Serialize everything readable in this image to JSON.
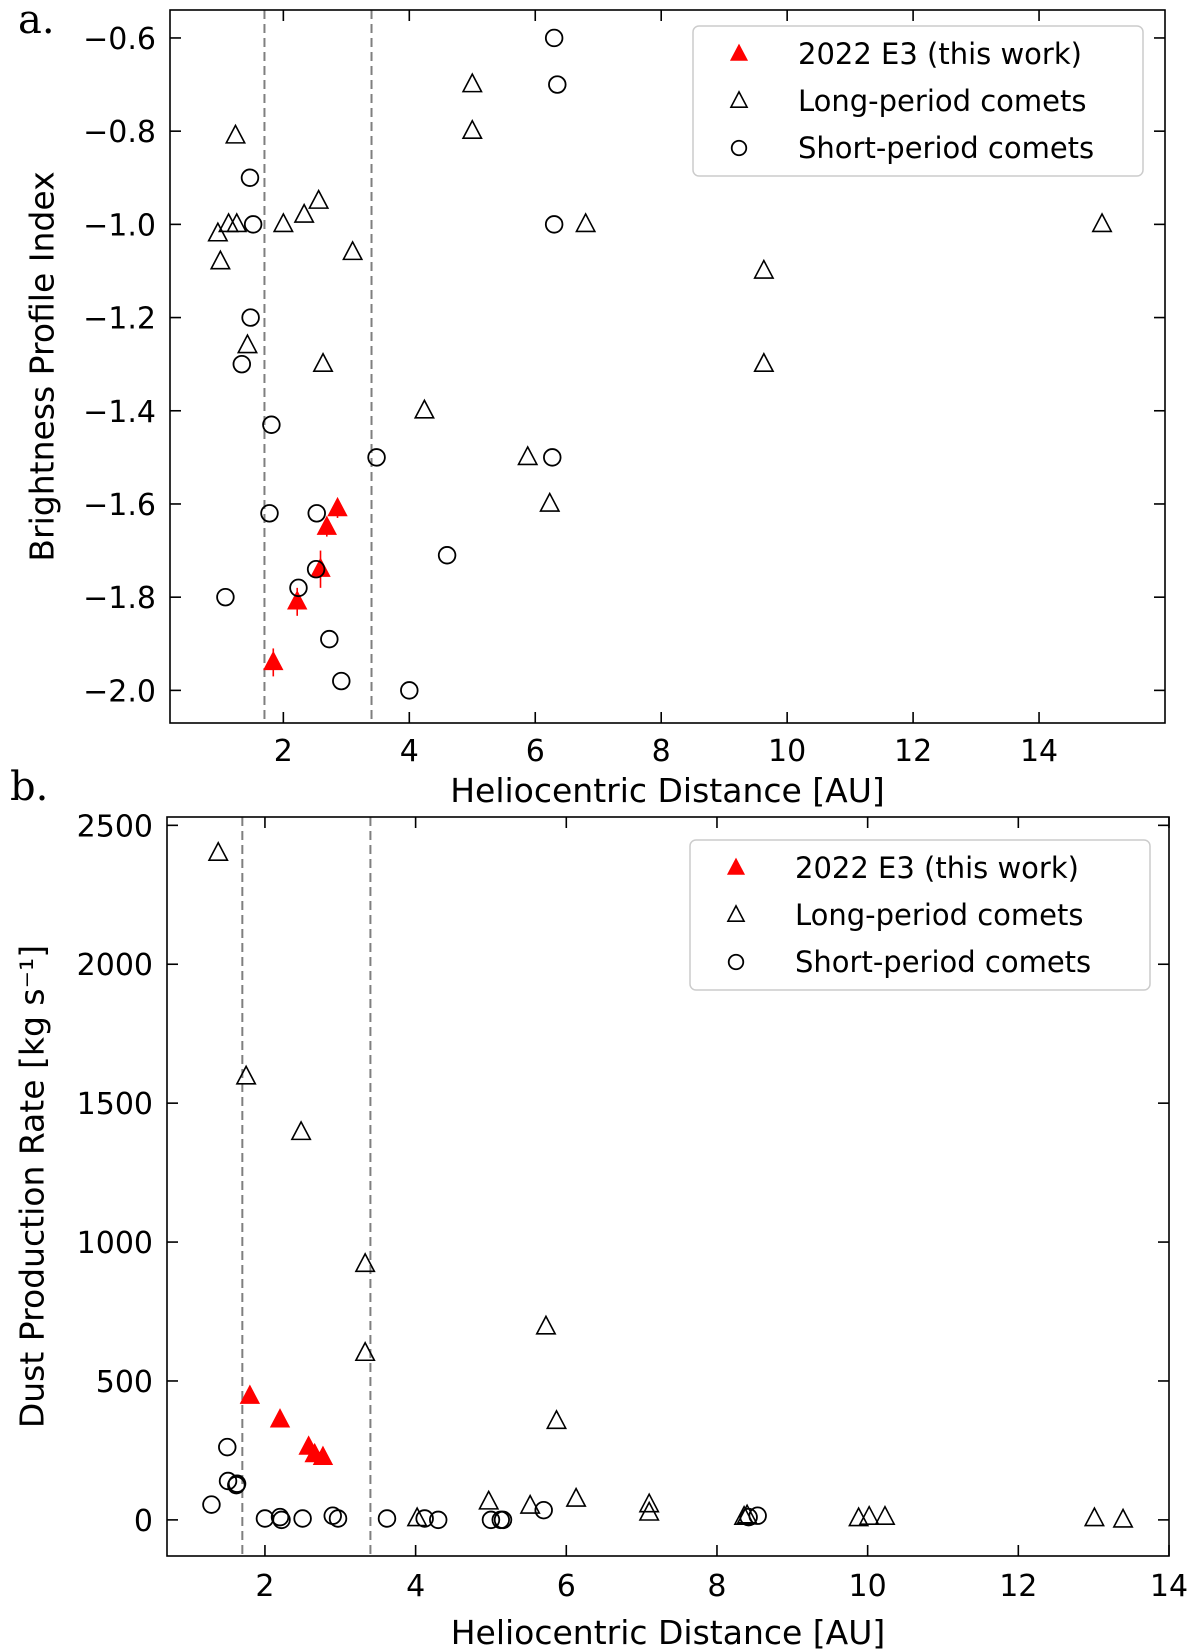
{
  "chart_data": [
    {
      "panel_label": "a.",
      "type": "scatter",
      "xlabel": "Heliocentric Distance [AU]",
      "ylabel": "Brightness Profile Index",
      "xlim": [
        0.2,
        16.0
      ],
      "ylim": [
        -2.07,
        -0.54
      ],
      "xticks": [
        2,
        4,
        6,
        8,
        10,
        12,
        14
      ],
      "yticks": [
        -2.0,
        -1.8,
        -1.6,
        -1.4,
        -1.2,
        -1.0,
        -0.8,
        -0.6
      ],
      "ytick_labels": [
        "−2.0",
        "−1.8",
        "−1.6",
        "−1.4",
        "−1.2",
        "−1.0",
        "−0.8",
        "−0.6"
      ],
      "vlines": [
        1.7,
        3.4
      ],
      "grid": false,
      "legend_position": "top-right",
      "series": [
        {
          "name": "2022 E3 (this work)",
          "marker": "filled-triangle",
          "color": "#ff0000",
          "points": [
            [
              1.84,
              -1.94
            ],
            [
              2.22,
              -1.81
            ],
            [
              2.59,
              -1.74
            ],
            [
              2.69,
              -1.65
            ],
            [
              2.86,
              -1.61
            ]
          ],
          "yerr": [
            0.03,
            0.03,
            0.04,
            0.02,
            0.02
          ]
        },
        {
          "name": "Long-period comets",
          "marker": "open-triangle",
          "color": "#000000",
          "points": [
            [
              0.96,
              -1.02
            ],
            [
              1.0,
              -1.08
            ],
            [
              1.13,
              -1.0
            ],
            [
              1.26,
              -1.0
            ],
            [
              1.24,
              -0.81
            ],
            [
              1.43,
              -1.26
            ],
            [
              2.0,
              -1.0
            ],
            [
              2.33,
              -0.98
            ],
            [
              2.56,
              -0.95
            ],
            [
              2.63,
              -1.3
            ],
            [
              3.1,
              -1.06
            ],
            [
              4.24,
              -1.4
            ],
            [
              5.0,
              -0.7
            ],
            [
              5.0,
              -0.8
            ],
            [
              5.88,
              -1.5
            ],
            [
              6.23,
              -1.6
            ],
            [
              6.8,
              -1.0
            ],
            [
              9.63,
              -1.1
            ],
            [
              9.63,
              -1.3
            ],
            [
              15.0,
              -1.0
            ]
          ]
        },
        {
          "name": "Short-period comets",
          "marker": "open-circle",
          "color": "#000000",
          "points": [
            [
              1.08,
              -1.8
            ],
            [
              1.34,
              -1.3
            ],
            [
              1.48,
              -1.2
            ],
            [
              1.47,
              -0.9
            ],
            [
              1.52,
              -1.0
            ],
            [
              1.81,
              -1.43
            ],
            [
              1.78,
              -1.62
            ],
            [
              2.24,
              -1.78
            ],
            [
              2.52,
              -1.74
            ],
            [
              2.53,
              -1.62
            ],
            [
              2.73,
              -1.89
            ],
            [
              2.92,
              -1.98
            ],
            [
              3.48,
              -1.5
            ],
            [
              4.0,
              -2.0
            ],
            [
              4.6,
              -1.71
            ],
            [
              6.27,
              -1.5
            ],
            [
              6.3,
              -1.0
            ],
            [
              6.3,
              -0.6
            ],
            [
              6.35,
              -0.7
            ]
          ]
        }
      ]
    },
    {
      "panel_label": "b.",
      "type": "scatter",
      "xlabel": "Heliocentric Distance [AU]",
      "ylabel": "Dust Production Rate [kg s⁻¹]",
      "xlim": [
        0.7,
        14.0
      ],
      "ylim": [
        -130,
        2530
      ],
      "xticks": [
        2,
        4,
        6,
        8,
        10,
        12,
        14
      ],
      "yticks": [
        0,
        500,
        1000,
        1500,
        2000,
        2500
      ],
      "ytick_labels": [
        "0",
        "500",
        "1000",
        "1500",
        "2000",
        "2500"
      ],
      "vlines": [
        1.7,
        3.4
      ],
      "grid": false,
      "legend_position": "top-right",
      "series": [
        {
          "name": "2022 E3 (this work)",
          "marker": "filled-triangle",
          "color": "#ff0000",
          "points": [
            [
              1.8,
              445
            ],
            [
              2.2,
              360
            ],
            [
              2.58,
              262
            ],
            [
              2.66,
              235
            ],
            [
              2.77,
              225
            ]
          ]
        },
        {
          "name": "Long-period comets",
          "marker": "open-triangle",
          "color": "#000000",
          "points": [
            [
              1.38,
              2400
            ],
            [
              1.75,
              1595
            ],
            [
              2.48,
              1395
            ],
            [
              3.33,
              920
            ],
            [
              3.33,
              600
            ],
            [
              5.73,
              695
            ],
            [
              5.87,
              355
            ],
            [
              4.02,
              5
            ],
            [
              4.97,
              65
            ],
            [
              5.52,
              50
            ],
            [
              6.13,
              75
            ],
            [
              7.1,
              55
            ],
            [
              7.1,
              25
            ],
            [
              8.36,
              10
            ],
            [
              8.4,
              15
            ],
            [
              9.88,
              5
            ],
            [
              10.02,
              10
            ],
            [
              10.23,
              10
            ],
            [
              13.01,
              5
            ],
            [
              13.39,
              0
            ]
          ]
        },
        {
          "name": "Short-period comets",
          "marker": "open-circle",
          "color": "#000000",
          "points": [
            [
              1.29,
              55
            ],
            [
              1.5,
              262
            ],
            [
              1.51,
              140
            ],
            [
              1.63,
              130
            ],
            [
              1.62,
              125
            ],
            [
              2.0,
              5
            ],
            [
              2.2,
              10
            ],
            [
              2.22,
              0
            ],
            [
              2.5,
              5
            ],
            [
              2.9,
              15
            ],
            [
              2.97,
              5
            ],
            [
              3.62,
              5
            ],
            [
              4.12,
              5
            ],
            [
              4.3,
              0
            ],
            [
              5.0,
              0
            ],
            [
              5.13,
              0
            ],
            [
              5.16,
              0
            ],
            [
              5.7,
              35
            ],
            [
              8.42,
              10
            ],
            [
              8.54,
              15
            ]
          ]
        }
      ]
    }
  ]
}
